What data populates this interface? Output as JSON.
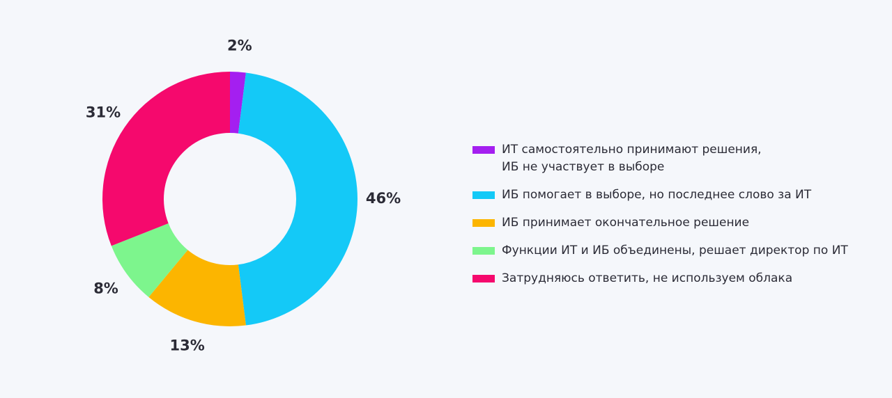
{
  "chart_data": {
    "type": "donut",
    "labels": [
      "ИТ самостоятельно принимают решения,\nИБ не участвует в выборе",
      "ИБ помогает в выборе, но последнее слово за ИТ",
      "ИБ принимает окончательное решение",
      "Функции ИТ и ИБ объединены, решает директор по ИТ",
      "Затрудняюсь ответить, не используем облака"
    ],
    "values": [
      2,
      46,
      13,
      8,
      31
    ],
    "value_labels": [
      "2%",
      "46%",
      "13%",
      "8%",
      "31%"
    ],
    "colors": [
      "#a41ff0",
      "#14c9f7",
      "#fcb500",
      "#7df58d",
      "#f5096d"
    ],
    "legend": "right"
  }
}
